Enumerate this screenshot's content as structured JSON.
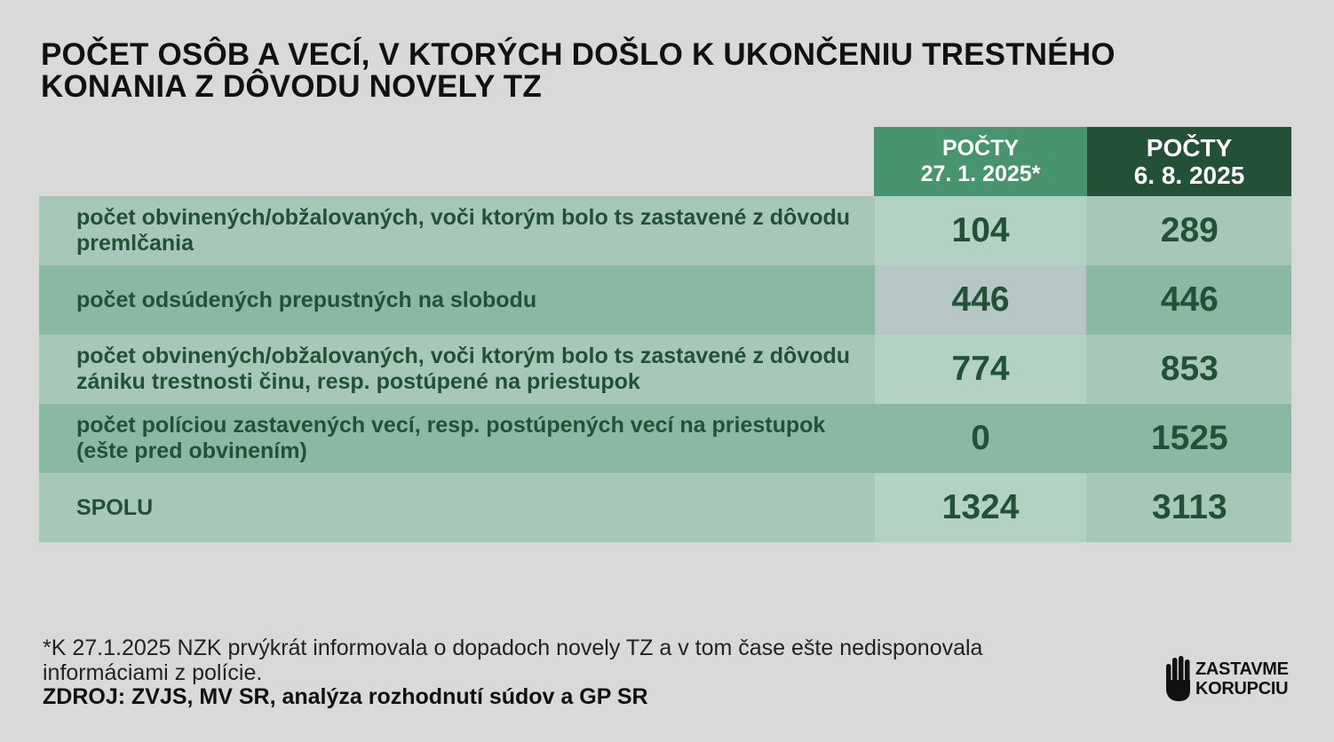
{
  "title": "POČET OSÔB A VECÍ, V KTORÝCH DOŠLO K UKONČENIU TRESTNÉHO KONANIA Z DÔVODU NOVELY TZ",
  "columns": [
    {
      "line1": "POČTY",
      "line2": "27. 1. 2025*"
    },
    {
      "line1": "POČTY",
      "line2": "6. 8. 2025"
    }
  ],
  "rows": [
    {
      "label": "počet obvinených/obžalovaných, voči ktorým bolo ts zastavené z dôvodu premlčania",
      "v1": "104",
      "v2": "289"
    },
    {
      "label": "počet odsúdených prepustných na slobodu",
      "v1": "446",
      "v2": "446"
    },
    {
      "label": "počet obvinených/obžalovaných, voči ktorým bolo ts zastavené z dôvodu zániku trestnosti činu, resp. postúpené na priestupok",
      "v1": "774",
      "v2": "853"
    },
    {
      "label": "počet políciou zastavených vecí, resp. postúpených vecí na priestupok (ešte pred obvinením)",
      "v1": "0",
      "v2": "1525"
    },
    {
      "label": "SPOLU",
      "v1": "1324",
      "v2": "3113"
    }
  ],
  "footnote": "*K 27.1.2025 NZK prvýkrát informovala o dopadoch novely TZ a v tom čase ešte nedisponovala informáciami z polície.",
  "source": "ZDROJ: ZVJS, MV SR, analýza rozhodnutí súdov a GP SR",
  "logo": {
    "line1": "ZASTAVME",
    "line2": "KORUPCIU",
    "icon": "raised-hand-icon"
  },
  "colors": {
    "header_col1": "#47946f",
    "header_col2": "#225138",
    "row_light": "#a7c7b8",
    "row_dark": "#89b9a3",
    "text_green": "#225138",
    "background": "#d9d9d9"
  }
}
